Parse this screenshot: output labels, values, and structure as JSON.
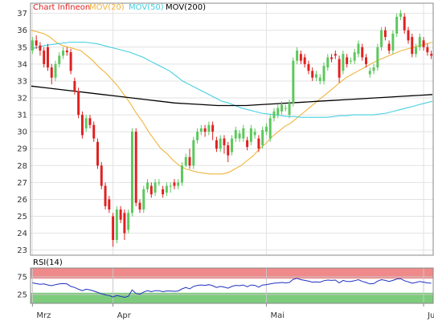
{
  "colors": {
    "up": "#5cc85c",
    "down": "#e02020",
    "mov20": "#f0b43c",
    "mov50": "#44d0e0",
    "mov200": "#000000",
    "rsi_line": "#2030c0",
    "rsi_upper_band": "#f08a8a",
    "rsi_lower_band": "#7ccc7c",
    "grid": "#e2e2e2",
    "axis": "#888888"
  },
  "legend": {
    "title": "Chart Infineon",
    "mov20": "MOV(20)",
    "mov50": "MOV(50)",
    "mov200": "MOV(200)"
  },
  "chart_data": [
    {
      "type": "candlestick",
      "title": "Chart Infineon",
      "ylim": [
        22.7,
        37.6
      ],
      "y_ticks": [
        "37",
        "36",
        "35",
        "34",
        "33",
        "32",
        "31",
        "30",
        "29",
        "28",
        "27",
        "26",
        "25",
        "24",
        "23"
      ],
      "x_ticks": [
        "Mrz",
        "Apr",
        "Mai",
        "Jun"
      ],
      "x_tick_index": [
        0,
        21,
        61,
        102
      ],
      "grid": true,
      "legend_position": "top-left",
      "candles": [
        [
          34.8,
          35.4,
          35.6,
          34.6
        ],
        [
          35.4,
          35.1,
          35.7,
          34.9
        ],
        [
          35.1,
          34.8,
          35.3,
          34.5
        ],
        [
          34.8,
          34.0,
          35.0,
          33.8
        ],
        [
          35.0,
          33.8,
          35.2,
          33.6
        ],
        [
          33.8,
          33.2,
          34.0,
          32.8
        ],
        [
          33.2,
          34.0,
          34.2,
          33.0
        ],
        [
          34.0,
          34.5,
          34.7,
          33.8
        ],
        [
          34.5,
          34.8,
          35.0,
          34.3
        ],
        [
          34.8,
          34.7,
          35.0,
          34.5
        ],
        [
          34.7,
          33.6,
          34.9,
          33.4
        ],
        [
          33.0,
          32.4,
          33.2,
          32.2
        ],
        [
          32.4,
          31.0,
          32.6,
          30.8
        ],
        [
          31.0,
          29.8,
          31.2,
          29.6
        ],
        [
          30.2,
          30.8,
          31.0,
          30.0
        ],
        [
          30.8,
          30.4,
          31.0,
          30.2
        ],
        [
          30.4,
          29.6,
          30.6,
          29.4
        ],
        [
          29.4,
          28.0,
          29.6,
          27.8
        ],
        [
          28.0,
          26.8,
          28.2,
          26.6
        ],
        [
          26.8,
          25.6,
          27.0,
          25.4
        ],
        [
          26.0,
          25.4,
          26.2,
          25.2
        ],
        [
          25.0,
          23.6,
          25.2,
          23.2
        ],
        [
          23.6,
          25.4,
          25.6,
          23.4
        ],
        [
          25.4,
          24.8,
          25.6,
          24.6
        ],
        [
          25.2,
          24.0,
          25.4,
          23.6
        ],
        [
          24.2,
          25.2,
          25.4,
          24.0
        ],
        [
          25.2,
          30.0,
          30.2,
          25.0
        ],
        [
          30.0,
          25.8,
          30.2,
          25.6
        ],
        [
          25.8,
          25.4,
          26.0,
          25.2
        ],
        [
          25.4,
          26.6,
          26.8,
          25.2
        ],
        [
          26.6,
          27.0,
          27.2,
          26.4
        ],
        [
          26.8,
          26.3,
          27.0,
          26.1
        ],
        [
          26.4,
          27.0,
          27.2,
          26.2
        ],
        [
          27.0,
          27.0,
          27.2,
          26.8
        ],
        [
          26.6,
          26.3,
          26.8,
          26.1
        ],
        [
          26.4,
          26.8,
          27.0,
          26.2
        ],
        [
          26.8,
          26.8,
          27.0,
          26.4
        ],
        [
          27.0,
          26.8,
          27.2,
          26.6
        ],
        [
          26.8,
          27.0,
          27.2,
          26.6
        ],
        [
          27.0,
          28.0,
          28.2,
          26.8
        ],
        [
          28.0,
          28.5,
          28.7,
          27.9
        ],
        [
          28.5,
          28.0,
          29.0,
          27.8
        ],
        [
          28.0,
          29.5,
          29.7,
          27.8
        ],
        [
          29.5,
          30.0,
          30.2,
          29.3
        ],
        [
          30.0,
          30.2,
          30.4,
          29.8
        ],
        [
          30.2,
          30.0,
          30.4,
          29.7
        ],
        [
          30.0,
          30.4,
          30.6,
          29.8
        ],
        [
          30.4,
          30.0,
          30.6,
          29.5
        ],
        [
          29.5,
          29.0,
          29.7,
          28.8
        ],
        [
          29.0,
          29.6,
          29.8,
          28.8
        ],
        [
          29.6,
          29.2,
          29.8,
          28.7
        ],
        [
          29.2,
          28.6,
          29.4,
          28.2
        ],
        [
          28.8,
          29.6,
          29.8,
          28.6
        ],
        [
          29.6,
          30.1,
          30.3,
          29.4
        ],
        [
          29.6,
          29.9,
          30.1,
          29.4
        ],
        [
          29.6,
          30.2,
          30.4,
          29.4
        ],
        [
          29.5,
          29.1,
          29.7,
          28.9
        ],
        [
          29.4,
          30.2,
          30.4,
          29.2
        ],
        [
          29.8,
          30.0,
          30.2,
          29.6
        ],
        [
          29.6,
          29.0,
          29.8,
          28.8
        ],
        [
          29.2,
          30.1,
          30.3,
          29.0
        ],
        [
          30.0,
          30.3,
          30.5,
          29.8
        ],
        [
          29.6,
          30.8,
          31.0,
          29.4
        ],
        [
          30.8,
          31.2,
          31.4,
          30.6
        ],
        [
          31.0,
          31.4,
          31.6,
          30.8
        ],
        [
          31.2,
          31.6,
          31.8,
          31.0
        ],
        [
          31.4,
          31.4,
          31.6,
          31.2
        ],
        [
          31.0,
          31.7,
          31.9,
          30.8
        ],
        [
          31.7,
          34.2,
          34.4,
          31.5
        ],
        [
          34.2,
          34.8,
          35.0,
          34.0
        ],
        [
          34.6,
          34.2,
          34.8,
          34.0
        ],
        [
          34.4,
          34.0,
          34.6,
          33.8
        ],
        [
          34.0,
          33.6,
          34.2,
          33.4
        ],
        [
          33.6,
          33.2,
          33.8,
          33.0
        ],
        [
          33.2,
          33.4,
          33.6,
          33.0
        ],
        [
          33.0,
          33.2,
          33.4,
          32.8
        ],
        [
          33.0,
          33.9,
          34.1,
          32.8
        ],
        [
          33.8,
          34.4,
          34.6,
          33.6
        ],
        [
          34.4,
          34.3,
          34.6,
          34.1
        ],
        [
          34.6,
          34.5,
          34.8,
          34.3
        ],
        [
          34.3,
          33.2,
          34.5,
          32.9
        ],
        [
          33.6,
          34.6,
          34.8,
          33.4
        ],
        [
          34.4,
          34.0,
          34.6,
          33.8
        ],
        [
          34.2,
          34.2,
          34.4,
          34.0
        ],
        [
          34.2,
          34.7,
          34.9,
          34.0
        ],
        [
          34.6,
          35.2,
          35.4,
          34.4
        ],
        [
          35.0,
          34.4,
          35.2,
          34.2
        ],
        [
          34.4,
          34.0,
          34.6,
          33.8
        ],
        [
          33.4,
          33.6,
          33.8,
          33.2
        ],
        [
          33.6,
          33.8,
          34.0,
          33.4
        ],
        [
          33.8,
          35.0,
          35.2,
          33.6
        ],
        [
          35.0,
          36.0,
          36.2,
          34.8
        ],
        [
          36.0,
          35.6,
          36.2,
          35.4
        ],
        [
          35.2,
          34.8,
          35.4,
          34.6
        ],
        [
          34.8,
          35.8,
          36.0,
          34.6
        ],
        [
          35.8,
          36.8,
          37.0,
          35.6
        ],
        [
          36.8,
          37.0,
          37.2,
          36.6
        ],
        [
          36.8,
          36.0,
          37.0,
          35.8
        ],
        [
          36.0,
          35.4,
          36.2,
          35.2
        ],
        [
          35.6,
          34.6,
          35.8,
          34.4
        ],
        [
          34.6,
          35.0,
          35.2,
          34.4
        ],
        [
          35.0,
          35.6,
          35.8,
          34.8
        ],
        [
          35.4,
          35.0,
          35.6,
          34.8
        ],
        [
          35.0,
          34.7,
          35.2,
          34.5
        ],
        [
          34.6,
          34.5,
          34.8,
          34.3
        ]
      ],
      "series": [
        {
          "name": "MOV(20)",
          "values": [
            36.0,
            35.9,
            35.8,
            35.6,
            35.3,
            35.1,
            35.0,
            34.9,
            34.8,
            34.5,
            34.2,
            33.8,
            33.5,
            33.1,
            32.7,
            32.2,
            31.7,
            31.1,
            30.6,
            30.0,
            29.5,
            29.0,
            28.7,
            28.3,
            28.0,
            27.8,
            27.7,
            27.6,
            27.55,
            27.5,
            27.5,
            27.5,
            27.6,
            27.8,
            28.0,
            28.3,
            28.6,
            29.0,
            29.3,
            29.7,
            30.0,
            30.3,
            30.5,
            30.8,
            31.1,
            31.4,
            31.7,
            32.0,
            32.3,
            32.6,
            32.9,
            33.2,
            33.4,
            33.6,
            33.8,
            34.0,
            34.2,
            34.35,
            34.5,
            34.65,
            34.8,
            34.9,
            35.0,
            35.1,
            35.2,
            35.3
          ]
        },
        {
          "name": "MOV(50)",
          "values": [
            34.9,
            35.0,
            35.1,
            35.15,
            35.2,
            35.25,
            35.3,
            35.3,
            35.3,
            35.25,
            35.2,
            35.1,
            35.0,
            34.9,
            34.8,
            34.7,
            34.55,
            34.4,
            34.2,
            34.0,
            33.8,
            33.6,
            33.3,
            33.0,
            32.8,
            32.6,
            32.4,
            32.2,
            32.0,
            31.8,
            31.7,
            31.55,
            31.4,
            31.3,
            31.2,
            31.1,
            31.05,
            31.0,
            30.95,
            30.9,
            30.9,
            30.85,
            30.85,
            30.85,
            30.85,
            30.85,
            30.9,
            30.95,
            30.95,
            31.0,
            31.0,
            31.0,
            31.0,
            31.05,
            31.1,
            31.2,
            31.3,
            31.4,
            31.5,
            31.6,
            31.7,
            31.8
          ]
        },
        {
          "name": "MOV(200)",
          "values": [
            32.7,
            32.6,
            32.5,
            32.4,
            32.3,
            32.2,
            32.1,
            32.0,
            31.9,
            31.8,
            31.7,
            31.65,
            31.6,
            31.55,
            31.55,
            31.55,
            31.6,
            31.65,
            31.7,
            31.75,
            31.8,
            31.85,
            31.9,
            31.95,
            32.0,
            32.05,
            32.1,
            32.15,
            32.2
          ]
        }
      ]
    },
    {
      "type": "line",
      "title": "RSI(14)",
      "ylim": [
        0,
        100
      ],
      "y_ticks": [
        "75",
        "25"
      ],
      "bands": [
        [
          70,
          100
        ],
        [
          0,
          30
        ]
      ],
      "grid": true,
      "series": [
        {
          "name": "RSI(14)",
          "values": [
            58,
            56,
            54,
            55,
            52,
            50,
            53,
            55,
            56,
            55,
            48,
            45,
            40,
            36,
            40,
            38,
            35,
            31,
            27,
            24,
            22,
            18,
            22,
            20,
            17,
            20,
            38,
            28,
            26,
            32,
            36,
            33,
            36,
            36,
            33,
            35,
            35,
            34,
            35,
            41,
            45,
            41,
            48,
            51,
            52,
            51,
            53,
            50,
            45,
            48,
            46,
            43,
            48,
            51,
            50,
            52,
            47,
            52,
            51,
            46,
            52,
            53,
            55,
            57,
            58,
            59,
            58,
            59,
            68,
            71,
            67,
            65,
            63,
            60,
            61,
            60,
            64,
            66,
            65,
            66,
            58,
            65,
            62,
            62,
            64,
            67,
            62,
            59,
            55,
            56,
            63,
            67,
            65,
            62,
            65,
            69,
            70,
            64,
            61,
            57,
            59,
            62,
            60,
            58,
            57
          ]
        }
      ]
    }
  ]
}
